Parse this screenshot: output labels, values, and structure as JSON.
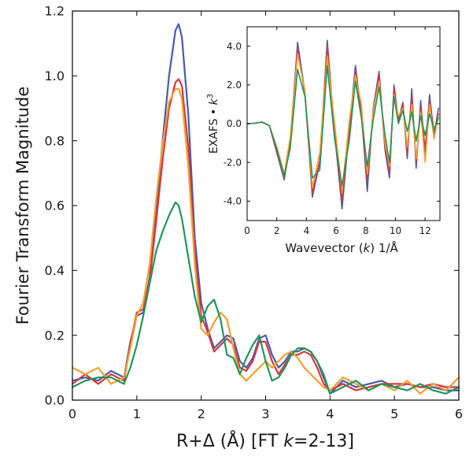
{
  "chart_data": [
    {
      "type": "line",
      "title": "",
      "xlabel": "R+Δ (Å) [FT k=2-13]",
      "xlabel_parts": [
        "R+Δ (Å) [FT ",
        "k",
        "=2-13]"
      ],
      "ylabel": "Fourier Transform Magnitude",
      "xlim": [
        0,
        6
      ],
      "ylim": [
        0,
        1.2
      ],
      "xticks": [
        0,
        1,
        2,
        3,
        4,
        5,
        6
      ],
      "yticks": [
        0.0,
        0.2,
        0.4,
        0.6,
        0.8,
        1.0,
        1.2
      ],
      "ytick_labels": [
        "0.0",
        "0.2",
        "0.4",
        "0.6",
        "0.8",
        "1.0",
        "1.2"
      ],
      "legend": "none",
      "grid": false,
      "series": [
        {
          "name": "blue",
          "color": "#4a5aa8",
          "x": [
            0,
            0.2,
            0.4,
            0.6,
            0.8,
            0.9,
            1.0,
            1.1,
            1.2,
            1.3,
            1.4,
            1.5,
            1.6,
            1.65,
            1.7,
            1.8,
            1.9,
            2.0,
            2.1,
            2.2,
            2.3,
            2.4,
            2.5,
            2.6,
            2.7,
            2.8,
            2.9,
            3.0,
            3.1,
            3.2,
            3.3,
            3.4,
            3.5,
            3.6,
            3.7,
            3.8,
            3.9,
            4.0,
            4.2,
            4.4,
            4.6,
            4.8,
            5.0,
            5.2,
            5.4,
            5.6,
            5.8,
            6.0
          ],
          "y": [
            0.06,
            0.07,
            0.06,
            0.09,
            0.07,
            0.18,
            0.26,
            0.27,
            0.38,
            0.58,
            0.8,
            1.0,
            1.14,
            1.16,
            1.12,
            0.88,
            0.5,
            0.3,
            0.22,
            0.16,
            0.18,
            0.2,
            0.19,
            0.12,
            0.1,
            0.13,
            0.19,
            0.2,
            0.14,
            0.1,
            0.12,
            0.15,
            0.15,
            0.16,
            0.15,
            0.12,
            0.07,
            0.02,
            0.06,
            0.04,
            0.05,
            0.06,
            0.04,
            0.05,
            0.04,
            0.04,
            0.03,
            0.03
          ]
        },
        {
          "name": "red",
          "color": "#d9363e",
          "x": [
            0,
            0.2,
            0.4,
            0.6,
            0.8,
            0.9,
            1.0,
            1.1,
            1.2,
            1.3,
            1.4,
            1.5,
            1.6,
            1.65,
            1.7,
            1.8,
            1.9,
            2.0,
            2.1,
            2.2,
            2.3,
            2.4,
            2.5,
            2.6,
            2.7,
            2.8,
            2.9,
            3.0,
            3.1,
            3.2,
            3.3,
            3.4,
            3.5,
            3.6,
            3.7,
            3.8,
            3.9,
            4.0,
            4.2,
            4.4,
            4.6,
            4.8,
            5.0,
            5.2,
            5.4,
            5.6,
            5.8,
            6.0
          ],
          "y": [
            0.05,
            0.08,
            0.05,
            0.08,
            0.06,
            0.17,
            0.27,
            0.28,
            0.37,
            0.55,
            0.74,
            0.9,
            0.98,
            0.99,
            0.97,
            0.78,
            0.45,
            0.26,
            0.21,
            0.15,
            0.17,
            0.19,
            0.17,
            0.1,
            0.09,
            0.12,
            0.18,
            0.18,
            0.12,
            0.08,
            0.11,
            0.14,
            0.14,
            0.15,
            0.14,
            0.1,
            0.05,
            0.03,
            0.05,
            0.03,
            0.04,
            0.05,
            0.05,
            0.05,
            0.04,
            0.05,
            0.04,
            0.04
          ]
        },
        {
          "name": "orange",
          "color": "#f0a030",
          "x": [
            0,
            0.2,
            0.4,
            0.6,
            0.8,
            0.9,
            1.0,
            1.1,
            1.2,
            1.3,
            1.4,
            1.5,
            1.6,
            1.65,
            1.7,
            1.8,
            1.9,
            2.0,
            2.1,
            2.2,
            2.3,
            2.4,
            2.5,
            2.6,
            2.7,
            2.8,
            2.9,
            3.0,
            3.1,
            3.2,
            3.3,
            3.4,
            3.5,
            3.6,
            3.7,
            3.8,
            3.9,
            4.0,
            4.2,
            4.4,
            4.6,
            4.8,
            5.0,
            5.2,
            5.4,
            5.6,
            5.8,
            6.0
          ],
          "y": [
            0.1,
            0.08,
            0.1,
            0.05,
            0.07,
            0.16,
            0.26,
            0.3,
            0.42,
            0.62,
            0.79,
            0.92,
            0.96,
            0.96,
            0.93,
            0.72,
            0.42,
            0.22,
            0.2,
            0.24,
            0.27,
            0.25,
            0.16,
            0.08,
            0.06,
            0.08,
            0.1,
            0.12,
            0.1,
            0.12,
            0.14,
            0.15,
            0.13,
            0.1,
            0.08,
            0.06,
            0.04,
            0.03,
            0.07,
            0.05,
            0.03,
            0.05,
            0.03,
            0.06,
            0.02,
            0.05,
            0.03,
            0.07
          ]
        },
        {
          "name": "green",
          "color": "#22945a",
          "x": [
            0,
            0.2,
            0.4,
            0.6,
            0.8,
            0.9,
            1.0,
            1.1,
            1.2,
            1.3,
            1.4,
            1.5,
            1.6,
            1.65,
            1.7,
            1.8,
            1.9,
            2.0,
            2.1,
            2.2,
            2.3,
            2.4,
            2.5,
            2.6,
            2.7,
            2.8,
            2.9,
            3.0,
            3.1,
            3.2,
            3.3,
            3.4,
            3.5,
            3.6,
            3.7,
            3.8,
            3.9,
            4.0,
            4.2,
            4.4,
            4.6,
            4.8,
            5.0,
            5.2,
            5.4,
            5.6,
            5.8,
            6.0
          ],
          "y": [
            0.04,
            0.06,
            0.07,
            0.07,
            0.05,
            0.1,
            0.17,
            0.26,
            0.36,
            0.46,
            0.52,
            0.57,
            0.61,
            0.6,
            0.56,
            0.44,
            0.32,
            0.24,
            0.29,
            0.31,
            0.25,
            0.14,
            0.13,
            0.08,
            0.13,
            0.17,
            0.2,
            0.12,
            0.06,
            0.07,
            0.1,
            0.14,
            0.16,
            0.16,
            0.15,
            0.12,
            0.08,
            0.02,
            0.04,
            0.06,
            0.03,
            0.05,
            0.04,
            0.03,
            0.05,
            0.03,
            0.02,
            0.04
          ]
        }
      ]
    },
    {
      "type": "line",
      "title": "",
      "xlabel": "Wavevector (k) 1/Å",
      "xlabel_parts": [
        "Wavevector (",
        "k",
        ") 1/Å"
      ],
      "ylabel": "EXAFS • k3",
      "ylabel_parts": [
        "EXAFS • ",
        "k",
        "3"
      ],
      "xlim": [
        0,
        13
      ],
      "ylim": [
        -5,
        5
      ],
      "xticks": [
        0,
        2,
        4,
        6,
        8,
        10,
        12
      ],
      "yticks": [
        -4,
        -2,
        0,
        2,
        4
      ],
      "ytick_labels": [
        "-4.0",
        "-2.0",
        "0.0",
        "2.0",
        "4.0"
      ],
      "legend": "none",
      "grid": false,
      "series": [
        {
          "name": "blue",
          "color": "#4a5aa8",
          "x": [
            0,
            0.5,
            1.0,
            1.5,
            2.0,
            2.5,
            2.9,
            3.4,
            3.9,
            4.4,
            4.9,
            5.4,
            5.9,
            6.4,
            6.9,
            7.3,
            7.7,
            8.1,
            8.5,
            8.9,
            9.3,
            9.6,
            9.9,
            10.2,
            10.5,
            10.8,
            11.1,
            11.4,
            11.7,
            12.0,
            12.3,
            12.6,
            12.9
          ],
          "y": [
            0.0,
            0.02,
            0.08,
            -0.1,
            -1.5,
            -2.9,
            -1.0,
            4.2,
            1.6,
            -3.8,
            -2.0,
            4.3,
            -0.5,
            -4.4,
            -0.2,
            3.0,
            0.6,
            -3.5,
            0.8,
            2.7,
            -1.4,
            -2.8,
            2.0,
            0.2,
            1.1,
            -1.8,
            1.8,
            -2.3,
            1.2,
            -1.6,
            1.5,
            -0.6,
            0.8
          ]
        },
        {
          "name": "red",
          "color": "#d9363e",
          "x": [
            0,
            0.5,
            1.0,
            1.5,
            2.0,
            2.5,
            2.9,
            3.4,
            3.9,
            4.4,
            4.9,
            5.4,
            5.9,
            6.4,
            6.9,
            7.3,
            7.7,
            8.1,
            8.5,
            8.9,
            9.3,
            9.6,
            9.9,
            10.2,
            10.5,
            10.8,
            11.1,
            11.4,
            11.7,
            12.0,
            12.3,
            12.6,
            12.9
          ],
          "y": [
            0.0,
            0.02,
            0.08,
            -0.1,
            -1.4,
            -2.8,
            -0.9,
            3.9,
            1.5,
            -3.6,
            -1.9,
            4.0,
            -0.4,
            -4.0,
            -0.2,
            2.7,
            0.5,
            -3.0,
            0.6,
            2.5,
            -1.3,
            -2.5,
            1.8,
            0.1,
            1.0,
            -1.5,
            1.4,
            -2.0,
            0.9,
            -1.3,
            1.2,
            -0.4,
            0.5
          ]
        },
        {
          "name": "orange",
          "color": "#f0a030",
          "x": [
            0,
            0.5,
            1.0,
            1.5,
            2.0,
            2.5,
            2.9,
            3.4,
            3.9,
            4.4,
            4.9,
            5.4,
            5.9,
            6.4,
            6.9,
            7.3,
            7.7,
            8.1,
            8.5,
            8.9,
            9.3,
            9.6,
            9.9,
            10.2,
            10.5,
            10.8,
            11.1,
            11.4,
            11.7,
            12.0,
            12.3,
            12.6,
            12.9
          ],
          "y": [
            0.0,
            0.02,
            0.1,
            -0.1,
            -1.2,
            -2.6,
            -0.7,
            3.6,
            1.7,
            -3.3,
            -1.5,
            3.5,
            0.0,
            -3.5,
            0.2,
            2.5,
            1.0,
            -2.6,
            0.7,
            2.2,
            -1.0,
            -2.2,
            1.5,
            0.4,
            0.8,
            -1.2,
            1.0,
            -1.8,
            0.6,
            -2.0,
            1.0,
            -0.8,
            0.4
          ]
        },
        {
          "name": "green",
          "color": "#22945a",
          "x": [
            0,
            0.5,
            1.0,
            1.5,
            2.0,
            2.5,
            2.9,
            3.4,
            3.9,
            4.4,
            4.9,
            5.4,
            5.9,
            6.4,
            6.9,
            7.3,
            7.7,
            8.1,
            8.5,
            8.9,
            9.3,
            9.6,
            9.9,
            10.2,
            10.5,
            10.8,
            11.1,
            11.4,
            11.7,
            12.0,
            12.3,
            12.6,
            12.9
          ],
          "y": [
            0.0,
            0.02,
            0.08,
            -0.1,
            -1.3,
            -2.7,
            -1.3,
            2.8,
            1.4,
            -2.8,
            -2.4,
            3.0,
            -0.8,
            -3.2,
            -0.8,
            2.2,
            0.3,
            -2.2,
            0.2,
            1.9,
            -0.6,
            -2.0,
            1.4,
            0.0,
            0.7,
            -0.4,
            0.6,
            -0.9,
            0.4,
            -0.6,
            0.5,
            -0.3,
            0.3
          ]
        }
      ]
    }
  ]
}
